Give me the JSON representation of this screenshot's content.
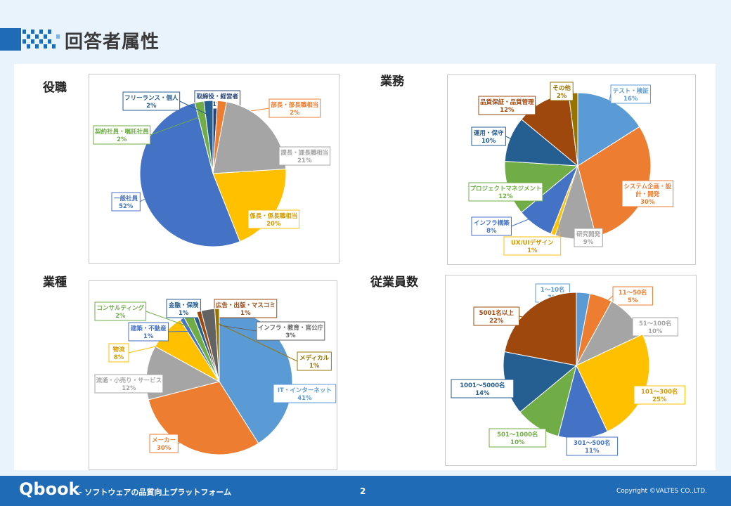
{
  "page": {
    "title": "回答者属性"
  },
  "footer": {
    "brand": "Qbook",
    "tagline": "- ソフトウェアの品質向上プラットフォーム",
    "page_number": "2",
    "copyright": "Copyright ©VALTES CO.,LTD."
  },
  "colors": {
    "footer_bg": "#1f6bb5",
    "accent": "#1f6bb5"
  },
  "chart_data": [
    {
      "type": "pie",
      "title": "役職",
      "categories": [
        "取締役・経営者",
        "部長・部長職相当",
        "課長・課長職相当",
        "係長・係長職相当",
        "一般社員",
        "契約社員・嘱託社員",
        "フリーランス・個人"
      ],
      "values": [
        1,
        2,
        21,
        20,
        52,
        2,
        2
      ],
      "labels": [
        [
          "取締役・経営者",
          "1%"
        ],
        [
          "部長・部長職相当",
          "2%"
        ],
        [
          "課長・課長職相当",
          "21%"
        ],
        [
          "係長・係長職相当",
          "20%"
        ],
        [
          "一般社員",
          "52%"
        ],
        [
          "契約社員・嘱託社員",
          "2%"
        ],
        [
          "フリーランス・個人",
          "2%"
        ]
      ],
      "colors": [
        "#264478",
        "#ed7d31",
        "#a5a5a5",
        "#ffc000",
        "#4472c4",
        "#70ad47",
        "#255e91"
      ]
    },
    {
      "type": "pie",
      "title": "業務",
      "categories": [
        "テスト・検証",
        "システム企画・設計・開発",
        "研究開発",
        "UX/UIデザイン",
        "インフラ構築",
        "プロジェクトマネジメント",
        "運用・保守",
        "品質保証・品質管理",
        "その他"
      ],
      "values": [
        16,
        30,
        9,
        1,
        8,
        12,
        10,
        12,
        2
      ],
      "labels": [
        [
          "テスト・検証",
          "16%"
        ],
        [
          "システム企画・設",
          "計・開発",
          "30%"
        ],
        [
          "研究開発",
          "9%"
        ],
        [
          "UX/UIデザイン",
          "1%"
        ],
        [
          "インフラ構築",
          "8%"
        ],
        [
          "プロジェクトマネジメント",
          "12%"
        ],
        [
          "運用・保守",
          "10%"
        ],
        [
          "品質保証・品質管理",
          "12%"
        ],
        [
          "その他",
          "2%"
        ]
      ],
      "colors": [
        "#5b9bd5",
        "#ed7d31",
        "#a5a5a5",
        "#ffc000",
        "#4472c4",
        "#70ad47",
        "#255e91",
        "#9e480e",
        "#997300"
      ]
    },
    {
      "type": "pie",
      "title": "業種",
      "categories": [
        "IT・インターネット",
        "メーカー",
        "流通・小売り・サービス",
        "物流",
        "建築・不動産",
        "コンサルティング",
        "金融・保険",
        "広告・出版・マスコミ",
        "インフラ・教育・官公庁",
        "メディカル"
      ],
      "values": [
        41,
        30,
        12,
        8,
        1,
        2,
        1,
        1,
        3,
        1
      ],
      "labels": [
        [
          "IT・インターネット",
          "41%"
        ],
        [
          "メーカー",
          "30%"
        ],
        [
          "流通・小売り・サービス",
          "12%"
        ],
        [
          "物流",
          "8%"
        ],
        [
          "建築・不動産",
          "1%"
        ],
        [
          "コンサルティング",
          "2%"
        ],
        [
          "金融・保険",
          "1%"
        ],
        [
          "広告・出版・マスコミ",
          "1%"
        ],
        [
          "インフラ・教育・官公庁",
          "3%"
        ],
        [
          "メディカル",
          "1%"
        ]
      ],
      "colors": [
        "#5b9bd5",
        "#ed7d31",
        "#a5a5a5",
        "#ffc000",
        "#4472c4",
        "#70ad47",
        "#255e91",
        "#9e480e",
        "#636363",
        "#997300"
      ]
    },
    {
      "type": "pie",
      "title": "従業員数",
      "categories": [
        "1～10名",
        "11～50名",
        "51～100名",
        "101～300名",
        "301～500名",
        "501～1000名",
        "1001～5000名",
        "5001名以上"
      ],
      "values": [
        3,
        5,
        10,
        25,
        11,
        10,
        14,
        22
      ],
      "labels": [
        [
          "1～10名",
          "3%"
        ],
        [
          "11～50名",
          "5%"
        ],
        [
          "51～100名",
          "10%"
        ],
        [
          "101～300名",
          "25%"
        ],
        [
          "301～500名",
          "11%"
        ],
        [
          "501～1000名",
          "10%"
        ],
        [
          "1001～5000名",
          "14%"
        ],
        [
          "5001名以上",
          "22%"
        ]
      ],
      "colors": [
        "#5b9bd5",
        "#ed7d31",
        "#a5a5a5",
        "#ffc000",
        "#4472c4",
        "#70ad47",
        "#255e91",
        "#9e480e"
      ]
    }
  ]
}
